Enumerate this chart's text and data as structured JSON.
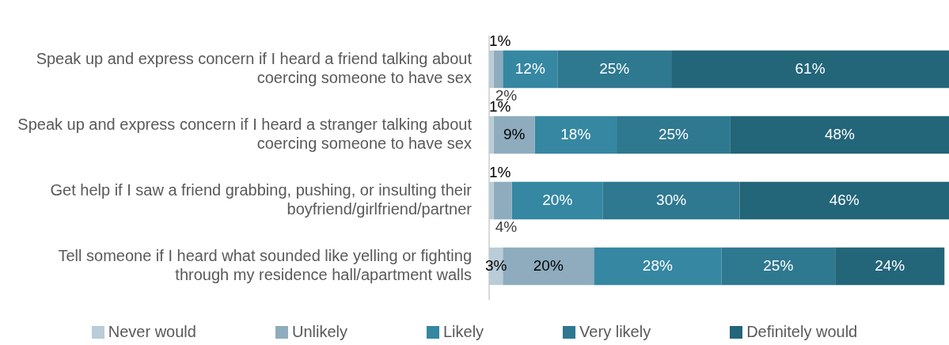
{
  "chart_data": {
    "type": "bar",
    "orientation": "horizontal",
    "stacked": true,
    "tick_labels": "y",
    "legend": "bottom",
    "categories": [
      "Speak up and express concern if I heard a friend talking about coercing someone to have sex",
      "Speak up and express concern if I heard a stranger talking about coercing someone to have sex",
      "Get help if I saw a friend grabbing, pushing, or insulting their boyfriend/girlfriend/partner",
      "Tell someone if I heard what sounded like yelling or fighting through my residence hall/apartment walls"
    ],
    "series": [
      {
        "name": "Never would",
        "color": "#b9ccd7",
        "values": [
          1,
          1,
          1,
          3
        ],
        "value_labels": [
          "1%",
          "1%",
          "1%",
          "3%"
        ]
      },
      {
        "name": "Unlikely",
        "color": "#8eacbe",
        "values": [
          2,
          9,
          4,
          20
        ],
        "value_labels": [
          "2%",
          "9%",
          "4%",
          "20%"
        ]
      },
      {
        "name": "Likely",
        "color": "#3587a2",
        "values": [
          12,
          18,
          20,
          28
        ],
        "value_labels": [
          "12%",
          "18%",
          "20%",
          "28%"
        ]
      },
      {
        "name": "Very likely",
        "color": "#2e7890",
        "values": [
          25,
          25,
          30,
          25
        ],
        "value_labels": [
          "25%",
          "25%",
          "30%",
          "25%"
        ]
      },
      {
        "name": "Definitely would",
        "color": "#236579",
        "values": [
          61,
          48,
          46,
          24
        ],
        "value_labels": [
          "61%",
          "48%",
          "46%",
          "24%"
        ]
      }
    ]
  }
}
